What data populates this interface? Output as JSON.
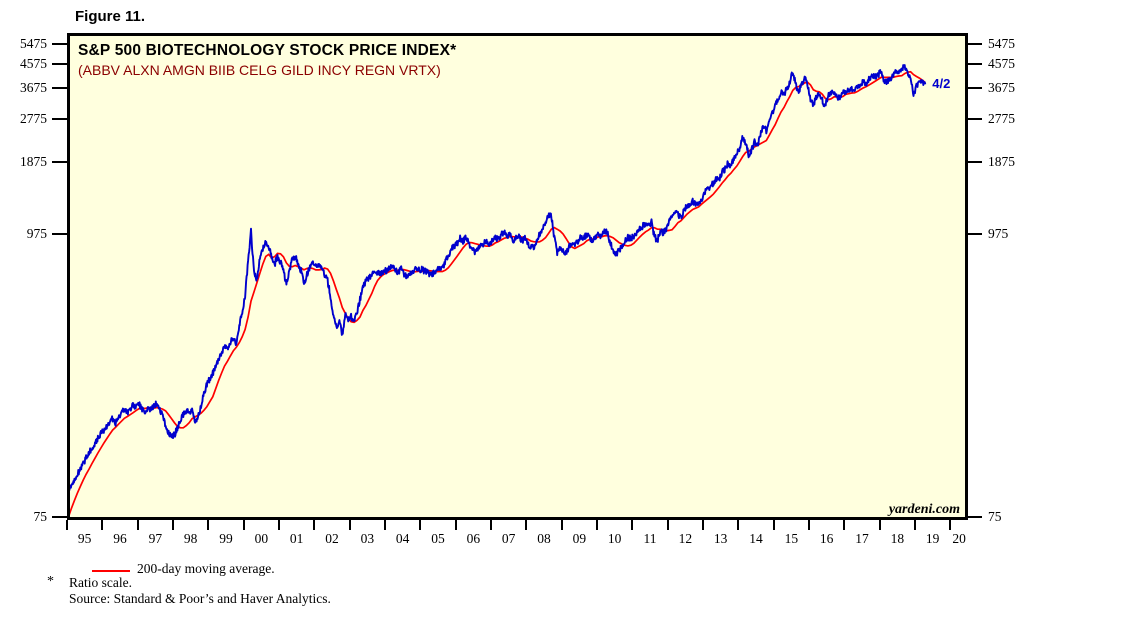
{
  "figure_label": "Figure 11.",
  "chart": {
    "title": "S&P 500 BIOTECHNOLOGY STOCK PRICE INDEX*",
    "subtitle": "(ABBV ALXN AMGN BIIB CELG GILD INCY REGN VRTX)",
    "watermark": "yardeni.com",
    "last_point_label": "4/2",
    "colors": {
      "price_line": "#0000cd",
      "ma_line": "#ff0000",
      "plot_background": "#ffffde",
      "subtitle_text": "#8b0000",
      "border": "#000000"
    }
  },
  "footnotes": {
    "legend_label": "200-day moving average.",
    "asterisk": "*",
    "ratio_note": "Ratio scale.",
    "source": "Source: Standard & Poor’s and Haver Analytics."
  },
  "chart_data": {
    "type": "line",
    "scale": "log",
    "title": "S&P 500 BIOTECHNOLOGY STOCK PRICE INDEX*",
    "subtitle": "(ABBV ALXN AMGN BIIB CELG GILD INCY REGN VRTX)",
    "grid": false,
    "y_ticks": [
      5475,
      4575,
      3675,
      2775,
      1875,
      975,
      75
    ],
    "y_range": [
      73,
      6050
    ],
    "x_range_years": [
      1995,
      2020.5
    ],
    "x_tick_years_start": 1995,
    "x_tick_labels": [
      "95",
      "96",
      "97",
      "98",
      "99",
      "00",
      "01",
      "02",
      "03",
      "04",
      "05",
      "06",
      "07",
      "08",
      "09",
      "10",
      "11",
      "12",
      "13",
      "14",
      "15",
      "16",
      "17",
      "18",
      "19",
      "20"
    ],
    "end_label": "4/2",
    "series": [
      {
        "name": "S&P 500 Biotechnology stock price index",
        "color": "#0000cd",
        "frequency": "monthly",
        "start_year": 1995,
        "start_month": 1,
        "values": [
          96,
          100,
          105,
          110,
          116,
          122,
          128,
          135,
          141,
          147,
          153,
          160,
          165,
          172,
          178,
          183,
          176,
          186,
          193,
          199,
          193,
          201,
          207,
          203,
          208,
          200,
          193,
          203,
          198,
          206,
          210,
          198,
          190,
          172,
          160,
          154,
          158,
          168,
          180,
          190,
          198,
          192,
          200,
          176,
          186,
          206,
          228,
          250,
          262,
          276,
          292,
          312,
          332,
          354,
          342,
          366,
          384,
          362,
          420,
          482,
          560,
          760,
          1000,
          690,
          645,
          780,
          850,
          912,
          868,
          800,
          742,
          798,
          760,
          700,
          622,
          700,
          778,
          798,
          742,
          700,
          622,
          678,
          728,
          748,
          730,
          742,
          718,
          678,
          638,
          556,
          458,
          422,
          438,
          394,
          468,
          450,
          462,
          442,
          478,
          540,
          600,
          640,
          658,
          678,
          698,
          688,
          678,
          700,
          702,
          722,
          730,
          708,
          690,
          718,
          678,
          668,
          688,
          700,
          720,
          710,
          708,
          698,
          688,
          674,
          684,
          700,
          718,
          708,
          758,
          798,
          858,
          878,
          898,
          938,
          918,
          948,
          898,
          848,
          830,
          858,
          878,
          898,
          918,
          898,
          918,
          948,
          928,
          978,
          998,
          948,
          978,
          898,
          938,
          968,
          918,
          938,
          898,
          868,
          858,
          918,
          978,
          1018,
          1098,
          1168,
          1148,
          948,
          828,
          868,
          848,
          818,
          868,
          898,
          878,
          918,
          958,
          938,
          978,
          948,
          918,
          948,
          978,
          958,
          998,
          988,
          898,
          848,
          818,
          838,
          878,
          918,
          948,
          938,
          958,
          998,
          1018,
          1048,
          1078,
          1058,
          1088,
          958,
          918,
          1008,
          988,
          1028,
          1088,
          1138,
          1188,
          1168,
          1128,
          1208,
          1258,
          1288,
          1318,
          1288,
          1268,
          1338,
          1418,
          1468,
          1508,
          1548,
          1618,
          1598,
          1718,
          1758,
          1858,
          1808,
          1958,
          2018,
          2148,
          2348,
          2248,
          1998,
          2098,
          2248,
          2198,
          2398,
          2598,
          2498,
          2798,
          2948,
          3098,
          3348,
          3548,
          3448,
          3648,
          3898,
          4298,
          3748,
          3548,
          3848,
          3998,
          3798,
          3298,
          3148,
          3398,
          3448,
          3298,
          3098,
          3448,
          3498,
          3548,
          3398,
          3348,
          3498,
          3548,
          3598,
          3648,
          3598,
          3698,
          3798,
          3898,
          3848,
          3998,
          4098,
          4048,
          4148,
          4298,
          3898,
          3848,
          3998,
          4098,
          4248,
          4298,
          4398,
          4448,
          4198,
          4098,
          3448,
          3748,
          3898,
          3848,
          3798
        ]
      },
      {
        "name": "200-day moving average",
        "color": "#ff0000",
        "derived": "trailing mean of price series (per legend: 200-day moving average)"
      }
    ]
  }
}
